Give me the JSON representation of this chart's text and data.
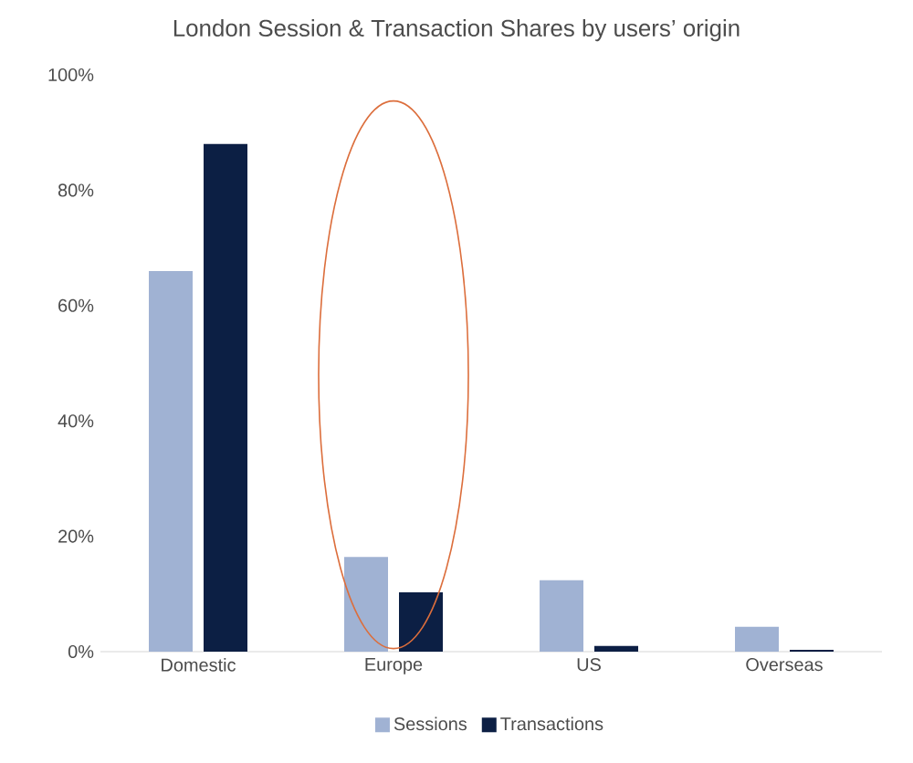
{
  "chart_data": {
    "type": "bar",
    "title": "London Session & Transaction Shares by users’ origin",
    "categories": [
      "Domestic",
      "Europe",
      "US",
      "Overseas"
    ],
    "series": [
      {
        "name": "Sessions",
        "color": "#a0b2d3",
        "values": [
          66,
          16.4,
          12.4,
          4.3
        ]
      },
      {
        "name": "Transactions",
        "color": "#0c1f44",
        "values": [
          88,
          10.3,
          1.0,
          0.3
        ]
      }
    ],
    "ylim": [
      0,
      100
    ],
    "yticks": [
      {
        "value": 0,
        "label": "0%"
      },
      {
        "value": 20,
        "label": "20%"
      },
      {
        "value": 40,
        "label": "40%"
      },
      {
        "value": 60,
        "label": "60%"
      },
      {
        "value": 80,
        "label": "80%"
      },
      {
        "value": 100,
        "label": "100%"
      }
    ],
    "legend": "bottom"
  }
}
